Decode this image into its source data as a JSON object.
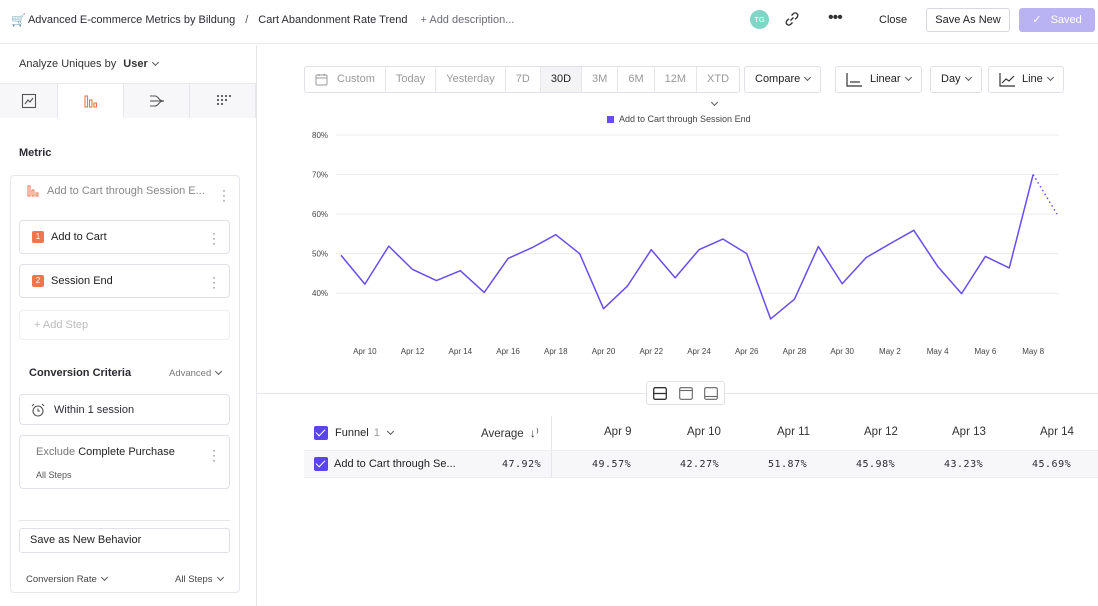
{
  "header": {
    "cart_icon": "🛒",
    "board_title": "Advanced E-commerce Metrics by Bildung",
    "separator": "/",
    "report_title": "Cart Abandonment Rate Trend",
    "add_description": "+ Add description...",
    "avatar_initials": "TG",
    "close_label": "Close",
    "save_as_new_label": "Save As New",
    "saved_label": "Saved",
    "saved_color": "#b9b3f3"
  },
  "sidebar": {
    "analyze_label": "Analyze Uniques by",
    "analyze_value": "User",
    "tabs": [
      "insights-icon",
      "funnels-icon",
      "flows-icon",
      "retention-icon"
    ],
    "metric_title": "Metric",
    "metric_name": "Add to Cart through Session E...",
    "steps": [
      {
        "num": "1",
        "label": "Add to Cart"
      },
      {
        "num": "2",
        "label": "Session End"
      }
    ],
    "add_step": "+ Add Step",
    "conversion_title": "Conversion Criteria",
    "advanced_label": "Advanced",
    "within_label": "Within 1 session",
    "exclude_prefix": "Exclude",
    "exclude_event": "Complete Purchase",
    "exclude_scope": "All Steps",
    "save_behavior": "Save as New Behavior",
    "footer_left": "Conversion Rate",
    "footer_right": "All Steps"
  },
  "toolbar": {
    "custom_label": "Custom",
    "ranges": [
      "Today",
      "Yesterday",
      "7D",
      "30D",
      "3M",
      "6M",
      "12M",
      "XTD"
    ],
    "active_range": "30D",
    "compare_label": "Compare",
    "scale_label": "Linear",
    "interval_label": "Day",
    "chart_type_label": "Line"
  },
  "chart_data": {
    "type": "line",
    "series": [
      {
        "name": "Add to Cart through Session End",
        "color": "#6a4cf0",
        "values": [
          49.6,
          42.3,
          51.9,
          46.0,
          43.2,
          45.7,
          40.2,
          48.8,
          51.5,
          54.8,
          50.0,
          36.1,
          41.8,
          51.0,
          43.9,
          51.0,
          53.7,
          50.0,
          33.5,
          38.5,
          51.8,
          42.4,
          49.0,
          52.5,
          55.9,
          46.8,
          39.9,
          49.3,
          46.4,
          70.0,
          60.0
        ]
      }
    ],
    "x": [
      "Apr 9",
      "Apr 10",
      "Apr 11",
      "Apr 12",
      "Apr 13",
      "Apr 14",
      "Apr 15",
      "Apr 16",
      "Apr 17",
      "Apr 18",
      "Apr 19",
      "Apr 20",
      "Apr 21",
      "Apr 22",
      "Apr 23",
      "Apr 24",
      "Apr 25",
      "Apr 26",
      "Apr 27",
      "Apr 28",
      "Apr 29",
      "Apr 30",
      "May 1",
      "May 2",
      "May 3",
      "May 4",
      "May 5",
      "May 6",
      "May 7",
      "May 8",
      "May 9"
    ],
    "x_ticks": [
      "Apr 10",
      "Apr 12",
      "Apr 14",
      "Apr 16",
      "Apr 18",
      "Apr 20",
      "Apr 22",
      "Apr 24",
      "Apr 26",
      "Apr 28",
      "Apr 30",
      "May 2",
      "May 4",
      "May 6",
      "May 8"
    ],
    "y_ticks": [
      "40%",
      "50%",
      "60%",
      "70%",
      "80%"
    ],
    "ylim": [
      35,
      80
    ],
    "dotted_last_segment": true,
    "grid": true,
    "legend": "top-center"
  },
  "table": {
    "funnel_label": "Funnel",
    "funnel_count": "1",
    "average_label": "Average",
    "columns": [
      "Apr 9",
      "Apr 10",
      "Apr 11",
      "Apr 12",
      "Apr 13",
      "Apr 14"
    ],
    "row_label": "Add to Cart through Se...",
    "row_average": "47.92%",
    "row_values": [
      "49.57%",
      "42.27%",
      "51.87%",
      "45.98%",
      "43.23%",
      "45.69%"
    ]
  }
}
